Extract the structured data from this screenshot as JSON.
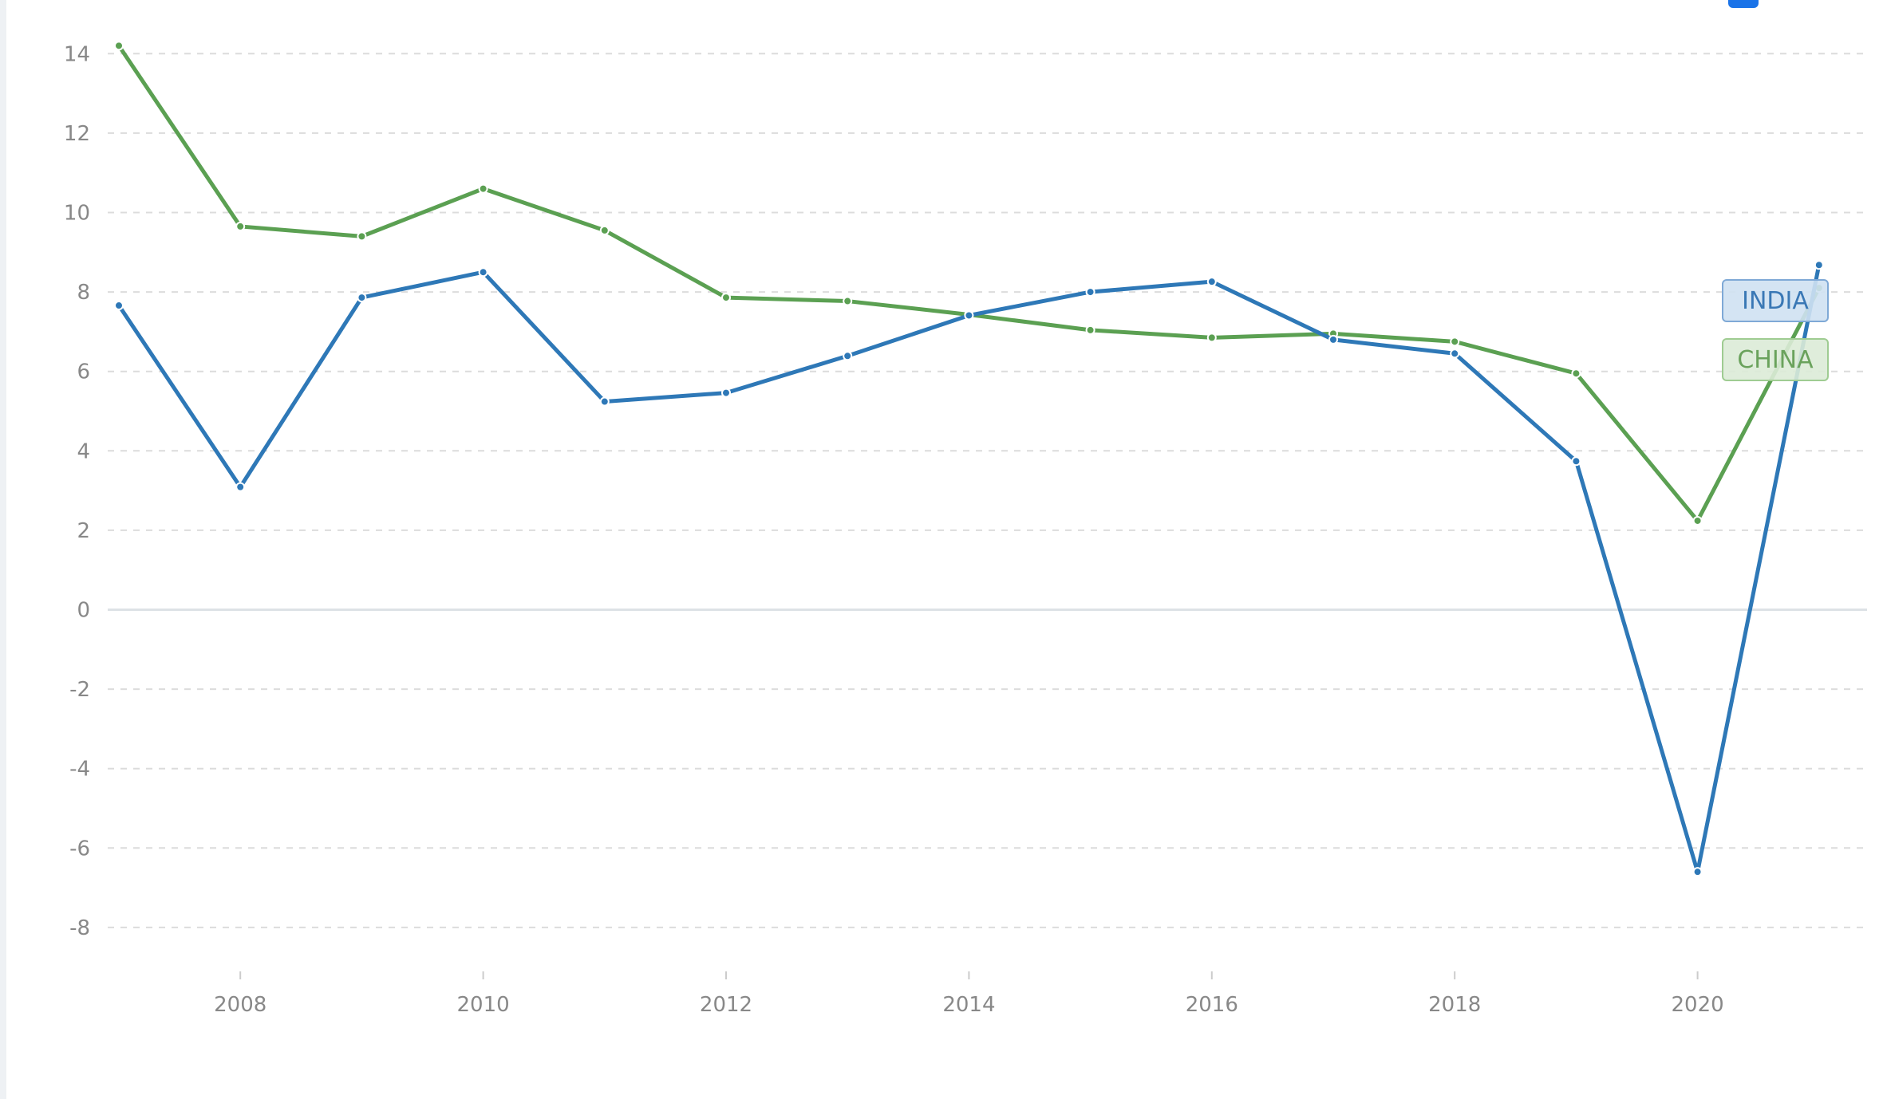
{
  "chart_data": {
    "type": "line",
    "x": [
      2007,
      2008,
      2009,
      2010,
      2011,
      2012,
      2013,
      2014,
      2015,
      2016,
      2017,
      2018,
      2019,
      2020,
      2021
    ],
    "series": [
      {
        "name": "INDIA",
        "color": "#2e78b7",
        "values": [
          7.66,
          3.09,
          7.86,
          8.5,
          5.24,
          5.46,
          6.39,
          7.41,
          8.0,
          8.26,
          6.8,
          6.45,
          3.74,
          -6.6,
          8.68
        ]
      },
      {
        "name": "CHINA",
        "color": "#5ba052",
        "values": [
          14.2,
          9.65,
          9.4,
          10.6,
          9.55,
          7.86,
          7.77,
          7.43,
          7.04,
          6.85,
          6.95,
          6.75,
          5.95,
          2.24,
          8.1
        ]
      }
    ],
    "xticks": [
      "2008",
      "2010",
      "2012",
      "2014",
      "2016",
      "2018",
      "2020"
    ],
    "yticks": [
      "14",
      "12",
      "10",
      "8",
      "6",
      "4",
      "2",
      "0",
      "-2",
      "-4",
      "-6",
      "-8"
    ],
    "ylim": [
      -8,
      14
    ],
    "xlim": [
      2007,
      2021
    ],
    "grid": "horizontal dashed",
    "legend": "end-of-line labels"
  }
}
